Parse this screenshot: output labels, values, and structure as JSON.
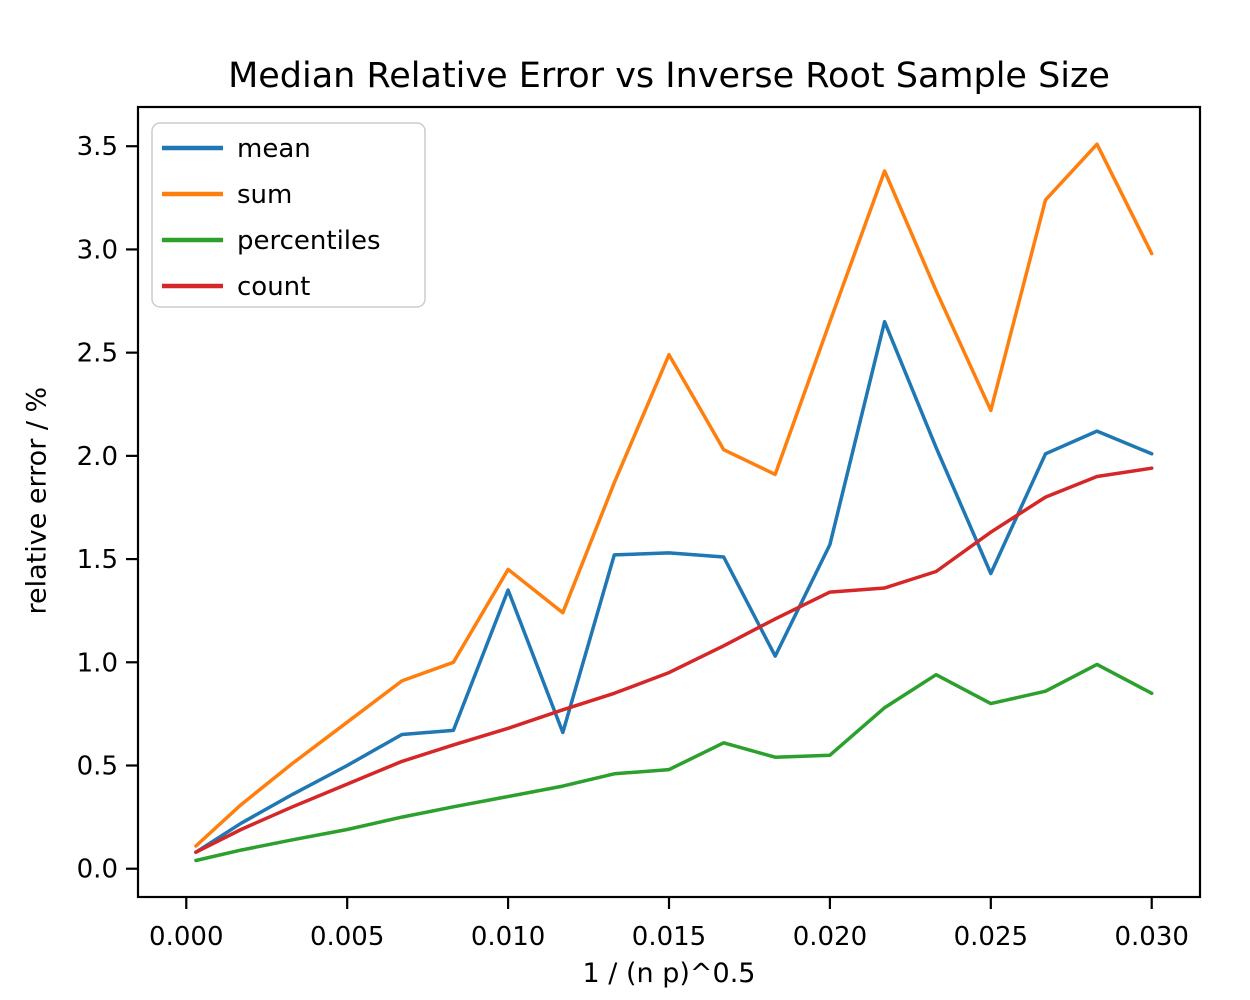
{
  "chart_data": {
    "type": "line",
    "title": "Median Relative Error vs Inverse Root Sample Size",
    "xlabel": "1 / (n p)^0.5",
    "ylabel": "relative error / %",
    "grid": false,
    "legend_position": "upper left",
    "xlim": [
      -0.0015,
      0.0315
    ],
    "ylim": [
      -0.137,
      3.69
    ],
    "xticks": [
      0.0,
      0.005,
      0.01,
      0.015,
      0.02,
      0.025,
      0.03
    ],
    "xtick_labels": [
      "0.000",
      "0.005",
      "0.010",
      "0.015",
      "0.020",
      "0.025",
      "0.030"
    ],
    "yticks": [
      0.0,
      0.5,
      1.0,
      1.5,
      2.0,
      2.5,
      3.0,
      3.5
    ],
    "ytick_labels": [
      "0.0",
      "0.5",
      "1.0",
      "1.5",
      "2.0",
      "2.5",
      "3.0",
      "3.5"
    ],
    "x": [
      0.0003,
      0.0017,
      0.0033,
      0.005,
      0.0067,
      0.0083,
      0.01,
      0.0117,
      0.0133,
      0.015,
      0.0167,
      0.0183,
      0.02,
      0.0217,
      0.0233,
      0.025,
      0.0267,
      0.0283,
      0.03
    ],
    "series": [
      {
        "name": "mean",
        "color": "#1f77b4",
        "values": [
          0.08,
          0.22,
          0.36,
          0.5,
          0.65,
          0.67,
          1.35,
          0.66,
          1.52,
          1.53,
          1.51,
          1.03,
          1.57,
          2.65,
          2.04,
          1.43,
          2.01,
          2.12,
          2.01
        ]
      },
      {
        "name": "sum",
        "color": "#ff7f0e",
        "values": [
          0.11,
          0.31,
          0.51,
          0.71,
          0.91,
          1.0,
          1.45,
          1.24,
          1.87,
          2.49,
          2.03,
          1.91,
          2.65,
          3.38,
          2.8,
          2.22,
          3.24,
          3.51,
          2.98
        ]
      },
      {
        "name": "percentiles",
        "color": "#2ca02c",
        "values": [
          0.04,
          0.09,
          0.14,
          0.19,
          0.25,
          0.3,
          0.35,
          0.4,
          0.46,
          0.48,
          0.61,
          0.54,
          0.55,
          0.78,
          0.94,
          0.8,
          0.86,
          0.99,
          0.85
        ]
      },
      {
        "name": "count",
        "color": "#d62728",
        "values": [
          0.08,
          0.19,
          0.3,
          0.41,
          0.52,
          0.6,
          0.68,
          0.77,
          0.85,
          0.95,
          1.08,
          1.21,
          1.34,
          1.36,
          1.44,
          1.63,
          1.8,
          1.9,
          1.94
        ]
      }
    ],
    "axis_color": "#000000",
    "legend_border_color": "#cccccc",
    "legend_bg_color": "#ffffff"
  }
}
